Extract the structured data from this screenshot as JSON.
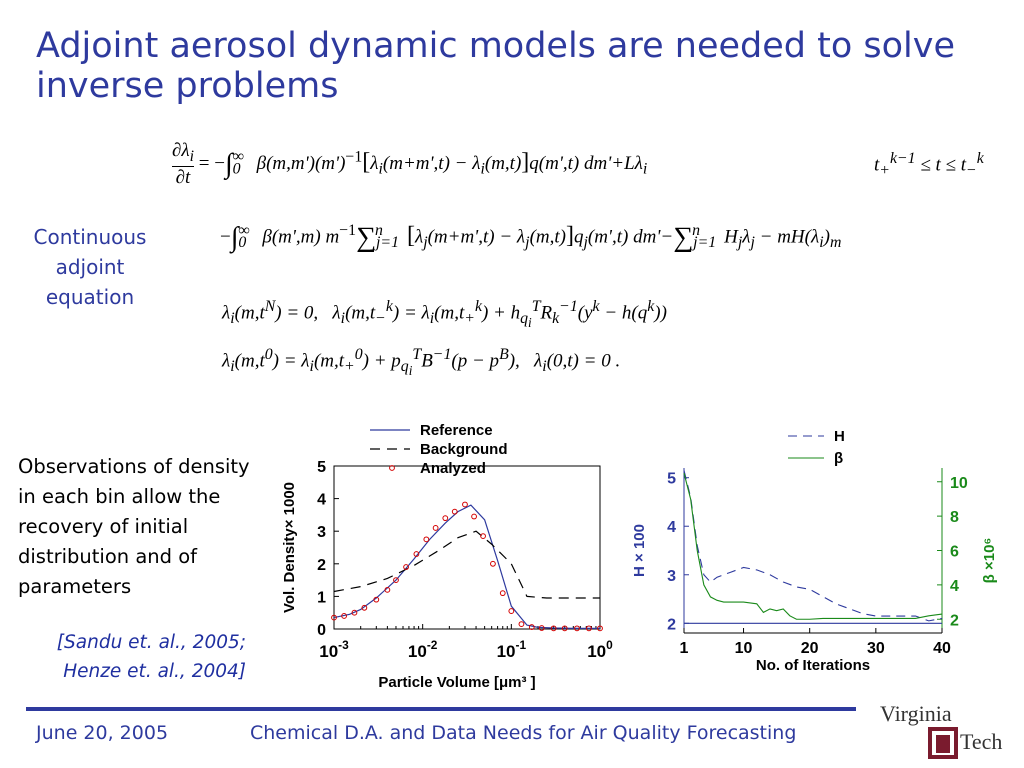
{
  "slide": {
    "title": "Adjoint aerosol dynamic models are needed to solve inverse problems",
    "side_label": "Continuous adjoint equation",
    "observations": "Observations of density in each bin allow the recovery of initial distribution and of parameters",
    "refs": [
      "[Sandu et. al., 2005;",
      "Henze et. al., 2004]"
    ],
    "footer_date": "June 20, 2005",
    "footer_title": "Chemical D.A. and Data Needs for Air Quality Forecasting",
    "logo_text": [
      "Virginia",
      "Tech"
    ]
  },
  "colors": {
    "accent": "#2e3a9e",
    "green": "#1a8a1a",
    "red": "#d40000",
    "logo_maroon": "#7a1b2e"
  },
  "chart_data": [
    {
      "type": "line",
      "xlabel": "Particle Volume [μm³ ]",
      "ylabel": "Vol. Density× 1000",
      "x_scale": "log",
      "xlim": [
        0.001,
        1
      ],
      "ylim": [
        0,
        5
      ],
      "x_ticks": [
        "10-3",
        "10-2",
        "10-1",
        "100"
      ],
      "y_ticks": [
        "0",
        "1",
        "2",
        "3",
        "4",
        "5"
      ],
      "legend": [
        "Reference",
        "Background",
        "Analyzed"
      ],
      "legend_placement": "top",
      "series": [
        {
          "name": "Reference",
          "style": "solid",
          "color": "#2e3a9e",
          "x": [
            0.001,
            0.0015,
            0.002,
            0.003,
            0.005,
            0.008,
            0.012,
            0.018,
            0.025,
            0.035,
            0.05,
            0.07,
            0.1,
            0.15,
            0.2,
            0.3,
            0.5,
            1
          ],
          "y": [
            0.35,
            0.45,
            0.6,
            0.95,
            1.5,
            2.15,
            2.75,
            3.25,
            3.6,
            3.8,
            3.35,
            2.1,
            0.7,
            0.12,
            0.05,
            0.03,
            0.02,
            0.02
          ]
        },
        {
          "name": "Background",
          "style": "dashed",
          "color": "#000000",
          "x": [
            0.001,
            0.002,
            0.004,
            0.008,
            0.015,
            0.025,
            0.04,
            0.06,
            0.1,
            0.15,
            0.25,
            0.5,
            1
          ],
          "y": [
            1.15,
            1.3,
            1.55,
            1.95,
            2.4,
            2.8,
            3.0,
            2.6,
            2.0,
            1.0,
            0.95,
            0.95,
            0.95
          ]
        },
        {
          "name": "Analyzed",
          "style": "markers",
          "color": "#d40000",
          "x": [
            0.001,
            0.0013,
            0.0017,
            0.0022,
            0.003,
            0.004,
            0.005,
            0.0065,
            0.0085,
            0.011,
            0.014,
            0.018,
            0.023,
            0.03,
            0.038,
            0.048,
            0.062,
            0.08,
            0.1,
            0.13,
            0.17,
            0.22,
            0.3,
            0.4,
            0.55,
            0.75,
            1
          ],
          "y": [
            0.35,
            0.4,
            0.5,
            0.65,
            0.9,
            1.2,
            1.5,
            1.9,
            2.3,
            2.75,
            3.1,
            3.4,
            3.6,
            3.82,
            3.45,
            2.85,
            2.0,
            1.1,
            0.55,
            0.15,
            0.06,
            0.03,
            0.02,
            0.02,
            0.02,
            0.02,
            0.02
          ]
        }
      ]
    },
    {
      "type": "line",
      "xlabel": "No. of Iterations",
      "y_left_label": "H × 100",
      "y_right_label": "β ×10⁶",
      "xlim": [
        1,
        40
      ],
      "y_left_lim": [
        1.8,
        5.2
      ],
      "y_right_lim": [
        1.2,
        10.8
      ],
      "x_ticks": [
        "1",
        "10",
        "20",
        "30",
        "40"
      ],
      "y_left_ticks": [
        "2",
        "3",
        "4",
        "5"
      ],
      "y_right_ticks": [
        "2",
        "4",
        "6",
        "8",
        "10"
      ],
      "legend": [
        "H",
        "β"
      ],
      "legend_placement": "top",
      "series": [
        {
          "name": "H",
          "axis": "left",
          "style": "dashed",
          "color": "#2e3a9e",
          "x": [
            1,
            2,
            3,
            4,
            5,
            6,
            8,
            10,
            12,
            14,
            16,
            18,
            20,
            22,
            24,
            26,
            28,
            30,
            32,
            34,
            36,
            38,
            40
          ],
          "y": [
            5.15,
            4.6,
            3.6,
            3.0,
            2.85,
            2.95,
            3.05,
            3.15,
            3.1,
            3.0,
            2.85,
            2.75,
            2.7,
            2.55,
            2.4,
            2.3,
            2.2,
            2.15,
            2.15,
            2.15,
            2.15,
            2.05,
            2.1
          ]
        },
        {
          "name": "β",
          "axis": "right",
          "style": "solid",
          "color": "#1a8a1a",
          "x": [
            1,
            2,
            3,
            4,
            5,
            6,
            7,
            8,
            9,
            10,
            11,
            12,
            13,
            14,
            15,
            16,
            17,
            18,
            20,
            22,
            24,
            26,
            28,
            30,
            32,
            34,
            36,
            38,
            40
          ],
          "y": [
            10.5,
            9.0,
            6.0,
            4.0,
            3.3,
            3.1,
            3.0,
            3.0,
            3.0,
            3.0,
            2.95,
            2.9,
            2.4,
            2.6,
            2.5,
            2.6,
            2.2,
            2.0,
            2.0,
            2.05,
            2.05,
            2.05,
            2.05,
            2.05,
            2.05,
            2.05,
            2.05,
            2.2,
            2.3
          ]
        },
        {
          "name": "",
          "axis": "left",
          "style": "solid",
          "color": "#2e3a9e",
          "x": [
            1,
            40
          ],
          "y": [
            2.0,
            2.0
          ]
        }
      ]
    }
  ]
}
